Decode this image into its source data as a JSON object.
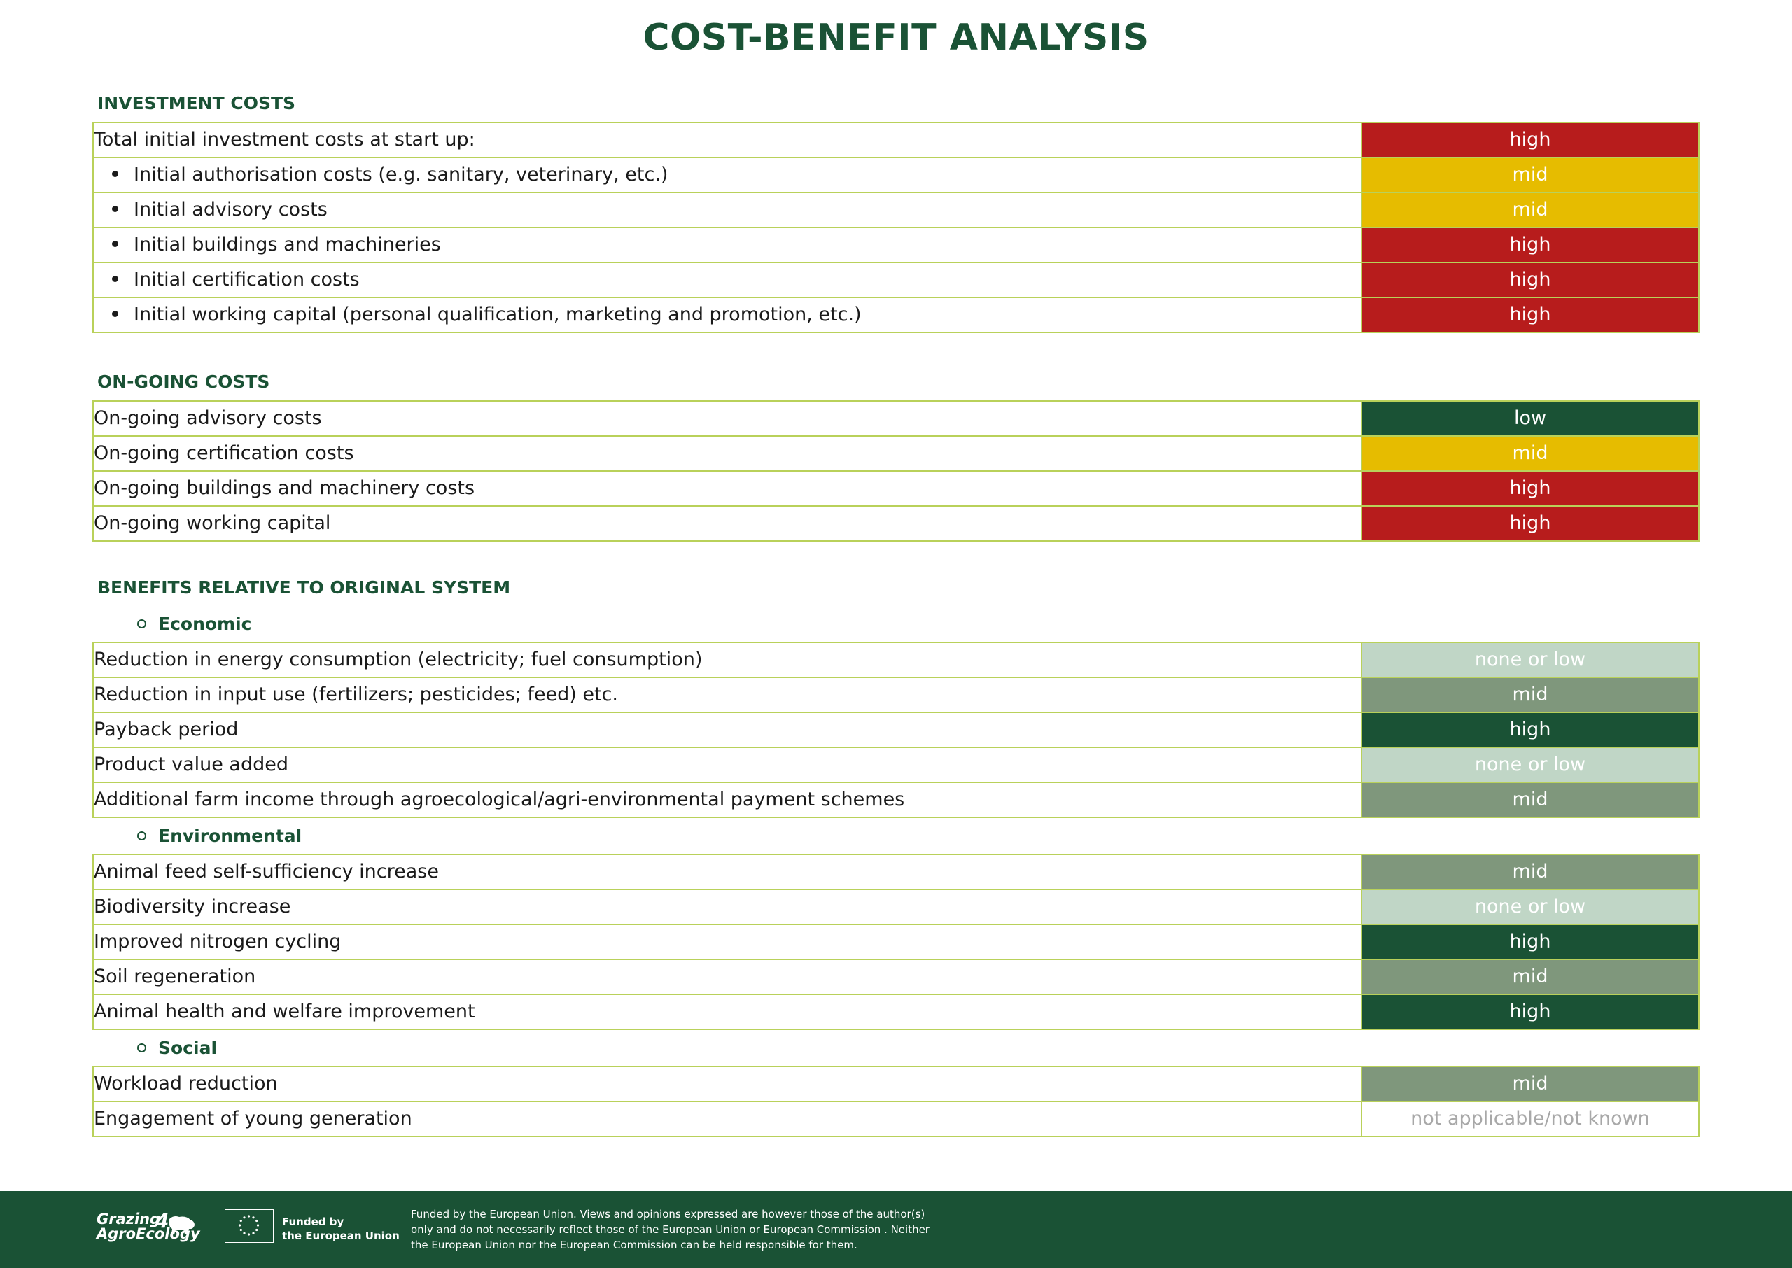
{
  "title": "COST-BENEFIT ANALYSIS",
  "investment": {
    "heading": "INVESTMENT COSTS",
    "rows": [
      {
        "label": "Total initial investment costs at start up:",
        "rating": "high"
      },
      {
        "label": "Initial authorisation costs (e.g. sanitary, veterinary, etc.)",
        "rating": "mid"
      },
      {
        "label": "Initial advisory costs",
        "rating": "mid"
      },
      {
        "label": "Initial buildings and machineries",
        "rating": "high"
      },
      {
        "label": "Initial certification costs",
        "rating": "high"
      },
      {
        "label": "Initial working capital (personal qualification, marketing and promotion, etc.)",
        "rating": "high"
      }
    ]
  },
  "ongoing": {
    "heading": "ON-GOING COSTS",
    "rows": [
      {
        "label": "On-going advisory costs",
        "rating": "low"
      },
      {
        "label": "On-going certification costs",
        "rating": "mid"
      },
      {
        "label": "On-going buildings and machinery costs",
        "rating": "high"
      },
      {
        "label": "On-going working capital",
        "rating": "high"
      }
    ]
  },
  "benefits": {
    "heading": "BENEFITS RELATIVE TO ORIGINAL SYSTEM",
    "economic": {
      "heading": "Economic",
      "rows": [
        {
          "label": "Reduction in energy consumption (electricity; fuel consumption)",
          "rating": "none or low"
        },
        {
          "label": "Reduction in input use (fertilizers; pesticides; feed) etc.",
          "rating": "mid"
        },
        {
          "label": "Payback period",
          "rating": "high"
        },
        {
          "label": "Product value added",
          "rating": "none or low"
        },
        {
          "label": "Additional farm income through agroecological/agri-environmental payment schemes",
          "rating": "mid"
        }
      ]
    },
    "environmental": {
      "heading": "Environmental",
      "rows": [
        {
          "label": "Animal feed self-sufficiency increase",
          "rating": "mid"
        },
        {
          "label": "Biodiversity increase",
          "rating": "none or low"
        },
        {
          "label": "Improved nitrogen cycling",
          "rating": "high"
        },
        {
          "label": "Soil regeneration",
          "rating": "mid"
        },
        {
          "label": "Animal health and welfare improvement",
          "rating": "high"
        }
      ]
    },
    "social": {
      "heading": "Social",
      "rows": [
        {
          "label": "Workload reduction",
          "rating": "mid"
        },
        {
          "label": "Engagement of young generation",
          "rating": "not applicable/not known"
        }
      ]
    }
  },
  "colors": {
    "brand_green": "#1a5235",
    "cost_high": "#b71c1c",
    "cost_mid": "#e6bc00",
    "cost_low": "#1a5235",
    "benefit_none_or_low": "#c0d6c6",
    "benefit_mid": "#7f977c",
    "benefit_high": "#1a5235",
    "table_border": "#b9d15a"
  },
  "footer": {
    "logo_line1": "Grazing",
    "logo_line2": "AgroEcology",
    "logo_mark": "4",
    "eu_line1": "Funded by",
    "eu_line2": "the European Union",
    "disclaimer_line1": "Funded by the European Union. Views and opinions expressed are however those of the author(s)",
    "disclaimer_line2": "only and do not necessarily reflect those of the European Union or European Commission . Neither",
    "disclaimer_line3": "the European Union nor the European Commission can be held responsible for them."
  }
}
